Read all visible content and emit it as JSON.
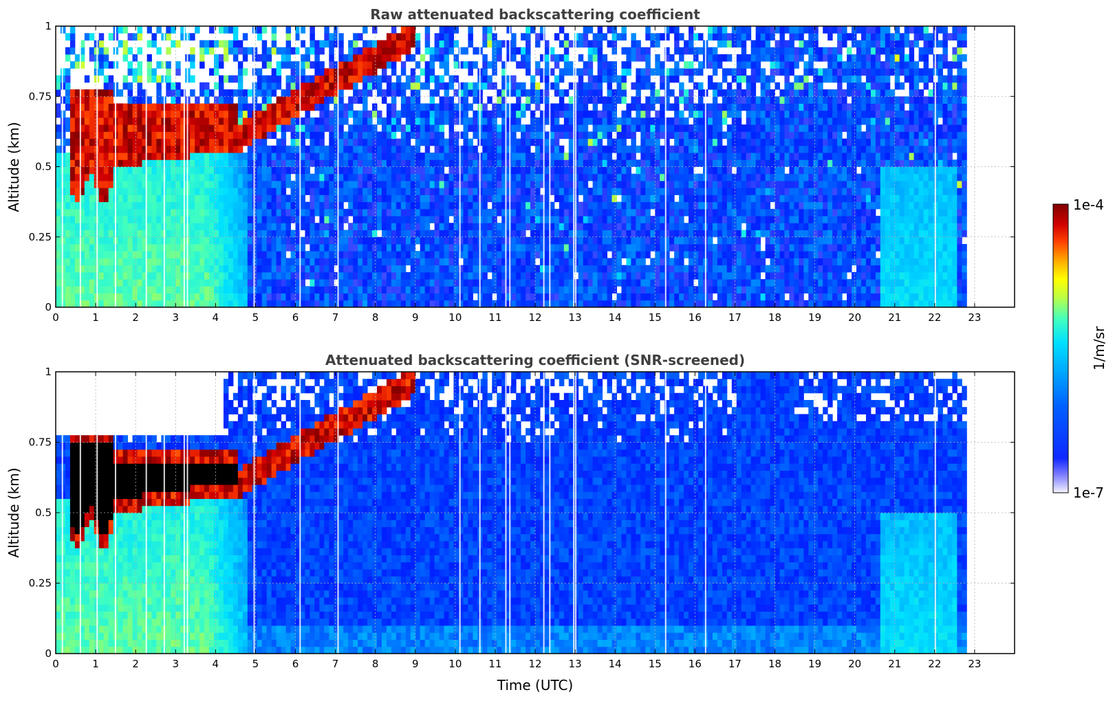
{
  "chart_data": [
    {
      "type": "heatmap",
      "title": "Raw attenuated backscattering coefficient",
      "xlabel": "",
      "ylabel": "Altitude (km)",
      "xlim": [
        0,
        24
      ],
      "ylim": [
        0,
        1
      ],
      "x_ticks": [
        "0",
        "1",
        "2",
        "3",
        "4",
        "5",
        "6",
        "7",
        "8",
        "9",
        "10",
        "11",
        "12",
        "13",
        "14",
        "15",
        "16",
        "17",
        "18",
        "19",
        "20",
        "21",
        "22",
        "23"
      ],
      "y_ticks": [
        "0",
        "0.25",
        "0.5",
        "0.75",
        "1"
      ],
      "grid": true,
      "data_end_hour": 22.8,
      "features": [
        {
          "name": "boundary-layer cloud",
          "time": [
            0.4,
            4.6
          ],
          "altitude_km": [
            0.52,
            0.78
          ],
          "level": "1e-4"
        },
        {
          "name": "rising cloud layer",
          "time": [
            4.6,
            9.0
          ],
          "altitude_km": [
            0.62,
            1.0
          ],
          "level": "1e-4"
        },
        {
          "name": "aerosol layer",
          "time": [
            0.0,
            4.8
          ],
          "altitude_km": [
            0.0,
            0.55
          ],
          "level": "~1e-5"
        },
        {
          "name": "background",
          "time": [
            4.8,
            22.8
          ],
          "altitude_km": [
            0.0,
            1.0
          ],
          "level": "~1e-6"
        }
      ]
    },
    {
      "type": "heatmap",
      "title": "Attenuated backscattering coefficient (SNR-screened)",
      "xlabel": "Time (UTC)",
      "ylabel": "Altitude (km)",
      "xlim": [
        0,
        24
      ],
      "ylim": [
        0,
        1
      ],
      "x_ticks": [
        "0",
        "1",
        "2",
        "3",
        "4",
        "5",
        "6",
        "7",
        "8",
        "9",
        "10",
        "11",
        "12",
        "13",
        "14",
        "15",
        "16",
        "17",
        "18",
        "19",
        "20",
        "21",
        "22",
        "23"
      ],
      "y_ticks": [
        "0",
        "0.25",
        "0.5",
        "0.75",
        "1"
      ],
      "grid": true,
      "data_end_hour": 22.8,
      "features": [
        {
          "name": "boundary-layer cloud (saturated)",
          "time": [
            0.4,
            4.6
          ],
          "altitude_km": [
            0.5,
            0.78
          ],
          "level": ">1e-4"
        },
        {
          "name": "screened region",
          "time": [
            0.0,
            4.2
          ],
          "altitude_km": [
            0.78,
            1.0
          ],
          "level": "masked"
        },
        {
          "name": "aerosol layer",
          "time": [
            0.0,
            4.8
          ],
          "altitude_km": [
            0.0,
            0.5
          ],
          "level": "~1e-5"
        },
        {
          "name": "background",
          "time": [
            4.8,
            22.8
          ],
          "altitude_km": [
            0.0,
            1.0
          ],
          "level": "~1e-6"
        }
      ]
    }
  ],
  "colorbar": {
    "max_label": "1e-4",
    "min_label": "1e-7",
    "unit_label": "1/m/sr",
    "colormap": [
      "#f4f4ff",
      "#7070ff",
      "#0020ff",
      "#0060ff",
      "#00a8ff",
      "#00e0ff",
      "#40ffc0",
      "#c0ff40",
      "#ffff00",
      "#ffb000",
      "#ff4000",
      "#d00000",
      "#800000"
    ]
  }
}
